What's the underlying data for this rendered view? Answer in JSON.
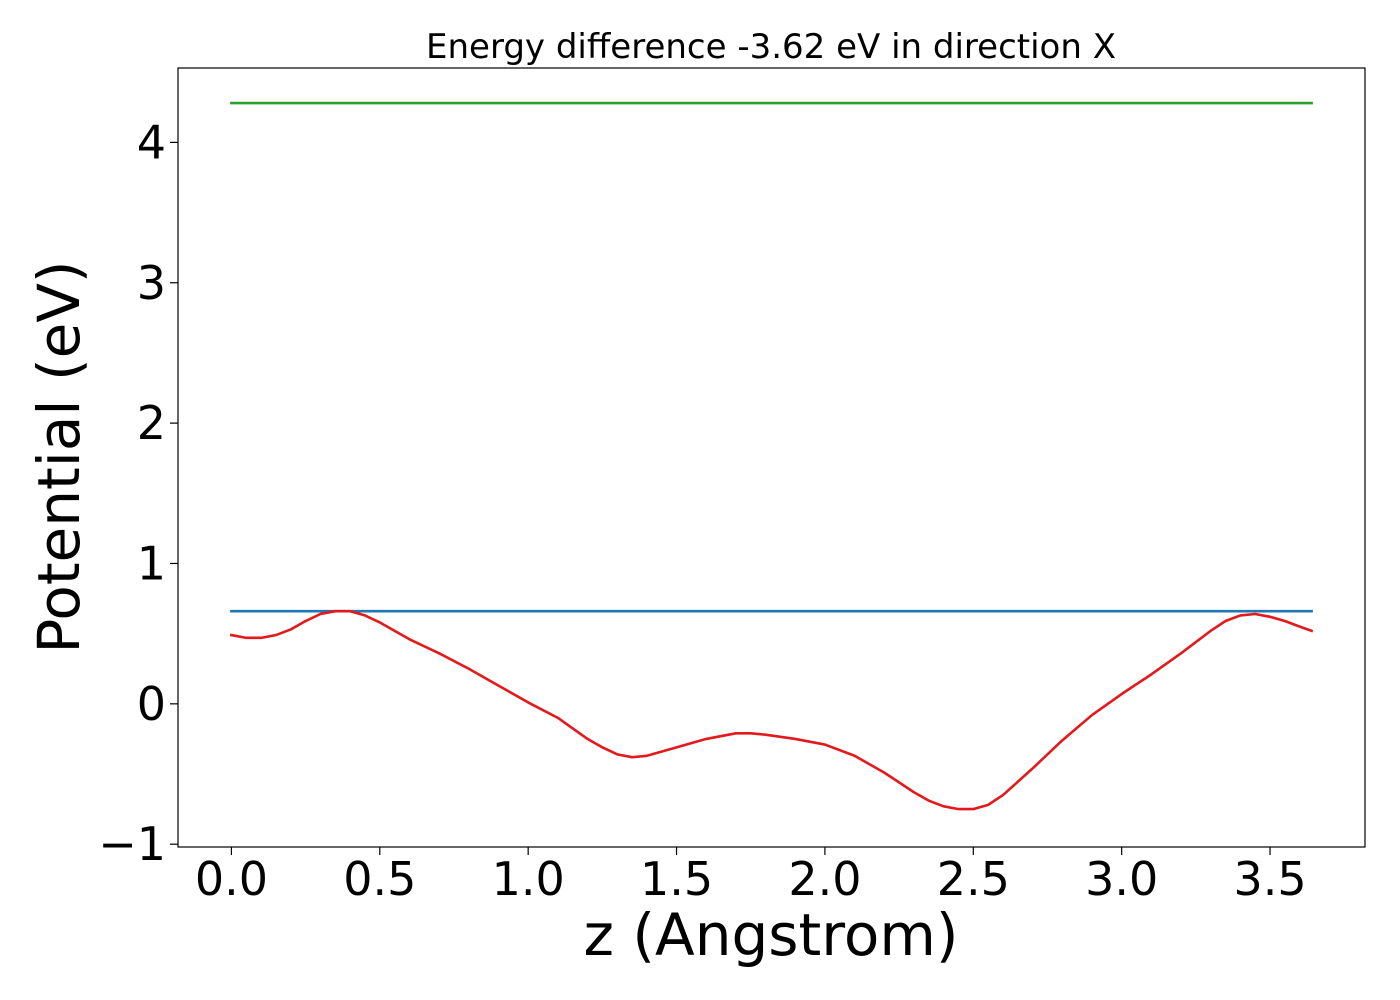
{
  "chart_data": {
    "type": "line",
    "title": "Energy difference -3.62 eV in direction X",
    "xlabel": "z (Angstrom)",
    "ylabel": "Potential (eV)",
    "xlim": [
      -0.18,
      3.82
    ],
    "ylim": [
      -1.02,
      4.53
    ],
    "xticks": [
      0.0,
      0.5,
      1.0,
      1.5,
      2.0,
      2.5,
      3.0,
      3.5
    ],
    "xtick_labels": [
      "0.0",
      "0.5",
      "1.0",
      "1.5",
      "2.0",
      "2.5",
      "3.0",
      "3.5"
    ],
    "yticks": [
      -1,
      0,
      1,
      2,
      3,
      4
    ],
    "ytick_labels": [
      "−1",
      "0",
      "1",
      "2",
      "3",
      "4"
    ],
    "grid": false,
    "legend": false,
    "series": [
      {
        "color": "#2ca02c",
        "x": [
          0.0,
          3.64
        ],
        "y": [
          4.28,
          4.28
        ]
      },
      {
        "color": "#1f77b4",
        "x": [
          0.0,
          3.64
        ],
        "y": [
          0.66,
          0.66
        ]
      },
      {
        "color": "#e31a1c",
        "x": [
          0.0,
          0.05,
          0.1,
          0.15,
          0.2,
          0.25,
          0.3,
          0.35,
          0.4,
          0.45,
          0.5,
          0.6,
          0.7,
          0.8,
          0.9,
          1.0,
          1.1,
          1.2,
          1.25,
          1.3,
          1.35,
          1.4,
          1.5,
          1.6,
          1.7,
          1.75,
          1.8,
          1.9,
          2.0,
          2.1,
          2.2,
          2.3,
          2.35,
          2.4,
          2.45,
          2.5,
          2.55,
          2.6,
          2.7,
          2.8,
          2.9,
          3.0,
          3.1,
          3.2,
          3.3,
          3.35,
          3.4,
          3.45,
          3.5,
          3.55,
          3.6,
          3.64
        ],
        "y": [
          0.49,
          0.47,
          0.47,
          0.49,
          0.53,
          0.59,
          0.64,
          0.66,
          0.66,
          0.63,
          0.58,
          0.46,
          0.36,
          0.25,
          0.13,
          0.01,
          -0.1,
          -0.25,
          -0.31,
          -0.36,
          -0.38,
          -0.37,
          -0.31,
          -0.25,
          -0.21,
          -0.21,
          -0.22,
          -0.25,
          -0.29,
          -0.37,
          -0.49,
          -0.63,
          -0.69,
          -0.73,
          -0.75,
          -0.75,
          -0.72,
          -0.65,
          -0.46,
          -0.26,
          -0.08,
          0.07,
          0.21,
          0.36,
          0.52,
          0.59,
          0.63,
          0.64,
          0.62,
          0.59,
          0.55,
          0.52
        ]
      }
    ]
  }
}
